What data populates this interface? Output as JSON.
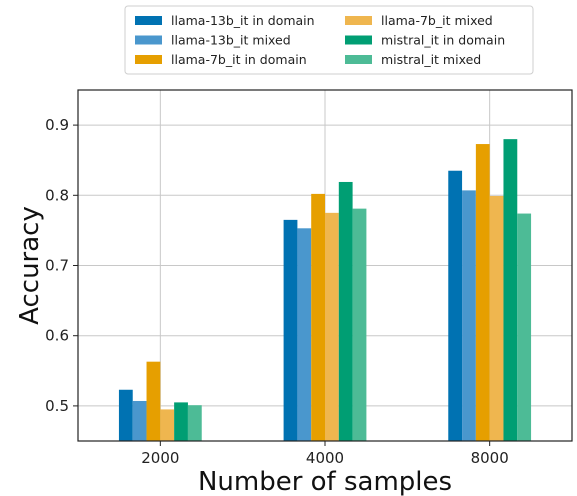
{
  "chart_data": {
    "type": "bar",
    "title": "",
    "xlabel": "Number of samples",
    "ylabel": "Accuracy",
    "categories": [
      "2000",
      "4000",
      "8000"
    ],
    "ylim": [
      0.45,
      0.95
    ],
    "yticks": [
      "0.5",
      "0.6",
      "0.7",
      "0.8",
      "0.9"
    ],
    "grid": true,
    "legend_position": "top-center",
    "series": [
      {
        "name": "llama-13b_it in domain",
        "color": "#0072b2",
        "values": [
          0.523,
          0.765,
          0.835
        ]
      },
      {
        "name": "llama-13b_it mixed",
        "color": "#4a97cd",
        "values": [
          0.507,
          0.753,
          0.807
        ]
      },
      {
        "name": "llama-7b_it in domain",
        "color": "#e69f00",
        "values": [
          0.563,
          0.802,
          0.873
        ]
      },
      {
        "name": "llama-7b_it mixed",
        "color": "#efb64f",
        "values": [
          0.495,
          0.775,
          0.799
        ]
      },
      {
        "name": "mistral_it in domain",
        "color": "#009e73",
        "values": [
          0.505,
          0.819,
          0.88
        ]
      },
      {
        "name": "mistral_it mixed",
        "color": "#4dbb96",
        "values": [
          0.501,
          0.781,
          0.774
        ]
      }
    ]
  }
}
